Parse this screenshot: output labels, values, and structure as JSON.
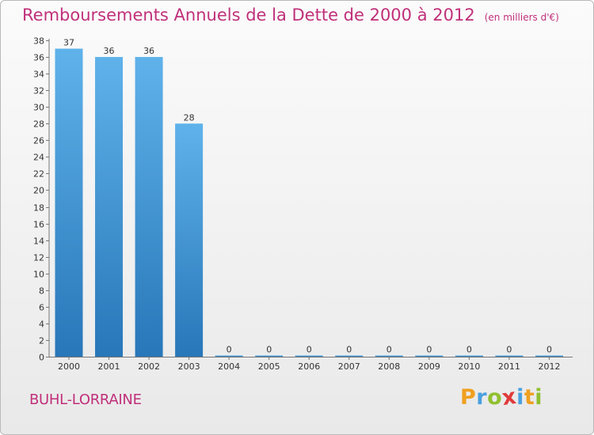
{
  "chart_data": {
    "type": "bar",
    "title": "Remboursements Annuels de la Dette de 2000 à 2012",
    "subtitle": "(en milliers d'€)",
    "categories": [
      "2000",
      "2001",
      "2002",
      "2003",
      "2004",
      "2005",
      "2006",
      "2007",
      "2008",
      "2009",
      "2010",
      "2011",
      "2012"
    ],
    "values": [
      37,
      36,
      36,
      28,
      0,
      0,
      0,
      0,
      0,
      0,
      0,
      0,
      0
    ],
    "data_labels": [
      "37",
      "36",
      "36",
      "28",
      "0",
      "0",
      "0",
      "0",
      "0",
      "0",
      "0",
      "0",
      "0"
    ],
    "ylim": [
      0,
      38
    ],
    "yticks": [
      0,
      2,
      4,
      6,
      8,
      10,
      12,
      14,
      16,
      18,
      20,
      22,
      24,
      26,
      28,
      30,
      32,
      34,
      36,
      38
    ],
    "grid": false,
    "legend": "none",
    "bar_color_top": "#5fb2ea",
    "bar_color_bottom": "#2877b9"
  },
  "commune": "BUHL-LORRAINE",
  "logo": {
    "letters": [
      {
        "ch": "P",
        "color": "#f0a020"
      },
      {
        "ch": "r",
        "color": "#4aa0e0"
      },
      {
        "ch": "o",
        "color": "#90c030"
      },
      {
        "ch": "x",
        "color": "#e03a3a"
      },
      {
        "ch": "i",
        "color": "#4aa0e0"
      },
      {
        "ch": "t",
        "color": "#f0a020"
      },
      {
        "ch": "i",
        "color": "#90c030"
      }
    ]
  }
}
